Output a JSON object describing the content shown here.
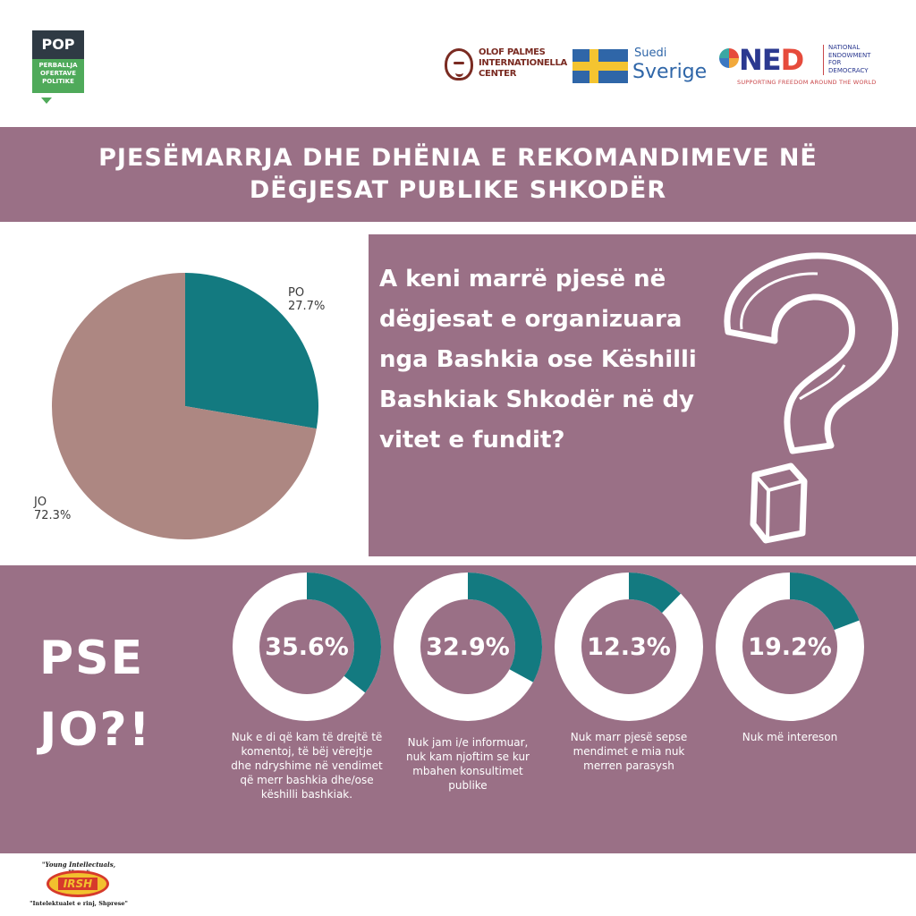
{
  "logos": {
    "pop": {
      "top": "POP",
      "lines": [
        "PERBALLJA",
        "OFERTAVE",
        "POLITIKE"
      ]
    },
    "olof": {
      "lines": [
        "OLOF PALMES",
        "INTERNATIONELLA",
        "CENTER"
      ]
    },
    "sweden": {
      "small": "Suedi",
      "big": "Sverige"
    },
    "ned": {
      "word_a": "N",
      "word_b": "E",
      "word_c": "D",
      "desc": [
        "NATIONAL",
        "ENDOWMENT",
        "FOR",
        "DEMOCRACY"
      ],
      "tagline": "SUPPORTING FREEDOM AROUND THE WORLD"
    },
    "irsh": {
      "top": "\"Young Intellectuals, Hope\"",
      "mark": "IRSH",
      "bottom": "\"Intelektualet e rinj, Shprese\""
    }
  },
  "title": "PJESËMARRJA DHE DHËNIA E REKOMANDIMEVE NË DËGJESAT PUBLIKE SHKODËR",
  "question": "A keni marrë pjesë në dëgjesat e organizuara nga Bashkia ose Këshilli Bashkiak Shkodër në dy vitet e fundit?",
  "colors": {
    "band": "#9a7086",
    "teal": "#137a80",
    "rose": "#ad8782",
    "white": "#ffffff"
  },
  "pse_jo": [
    "PSE",
    "JO?!"
  ],
  "chart_data": [
    {
      "type": "pie",
      "title": "",
      "slices": [
        {
          "label": "PO",
          "value": 27.7,
          "display": "27.7%",
          "color": "#137a80"
        },
        {
          "label": "JO",
          "value": 72.3,
          "display": "72.3%",
          "color": "#ad8782"
        }
      ]
    },
    {
      "type": "pie",
      "title": "",
      "subtype": "donut",
      "items": [
        {
          "value": 35.6,
          "display": "35.6%",
          "caption": "Nuk e di që kam të drejtë të komentoj, të bëj vërejtje dhe ndryshime në vendimet që merr bashkia dhe/ose këshilli bashkiak."
        },
        {
          "value": 32.9,
          "display": "32.9%",
          "caption": "Nuk jam i/e informuar, nuk kam njoftim se kur mbahen konsultimet publike"
        },
        {
          "value": 12.3,
          "display": "12.3%",
          "caption": "Nuk marr pjesë sepse mendimet e mia nuk merren parasysh"
        },
        {
          "value": 19.2,
          "display": "19.2%",
          "caption": "Nuk më intereson"
        }
      ]
    }
  ]
}
